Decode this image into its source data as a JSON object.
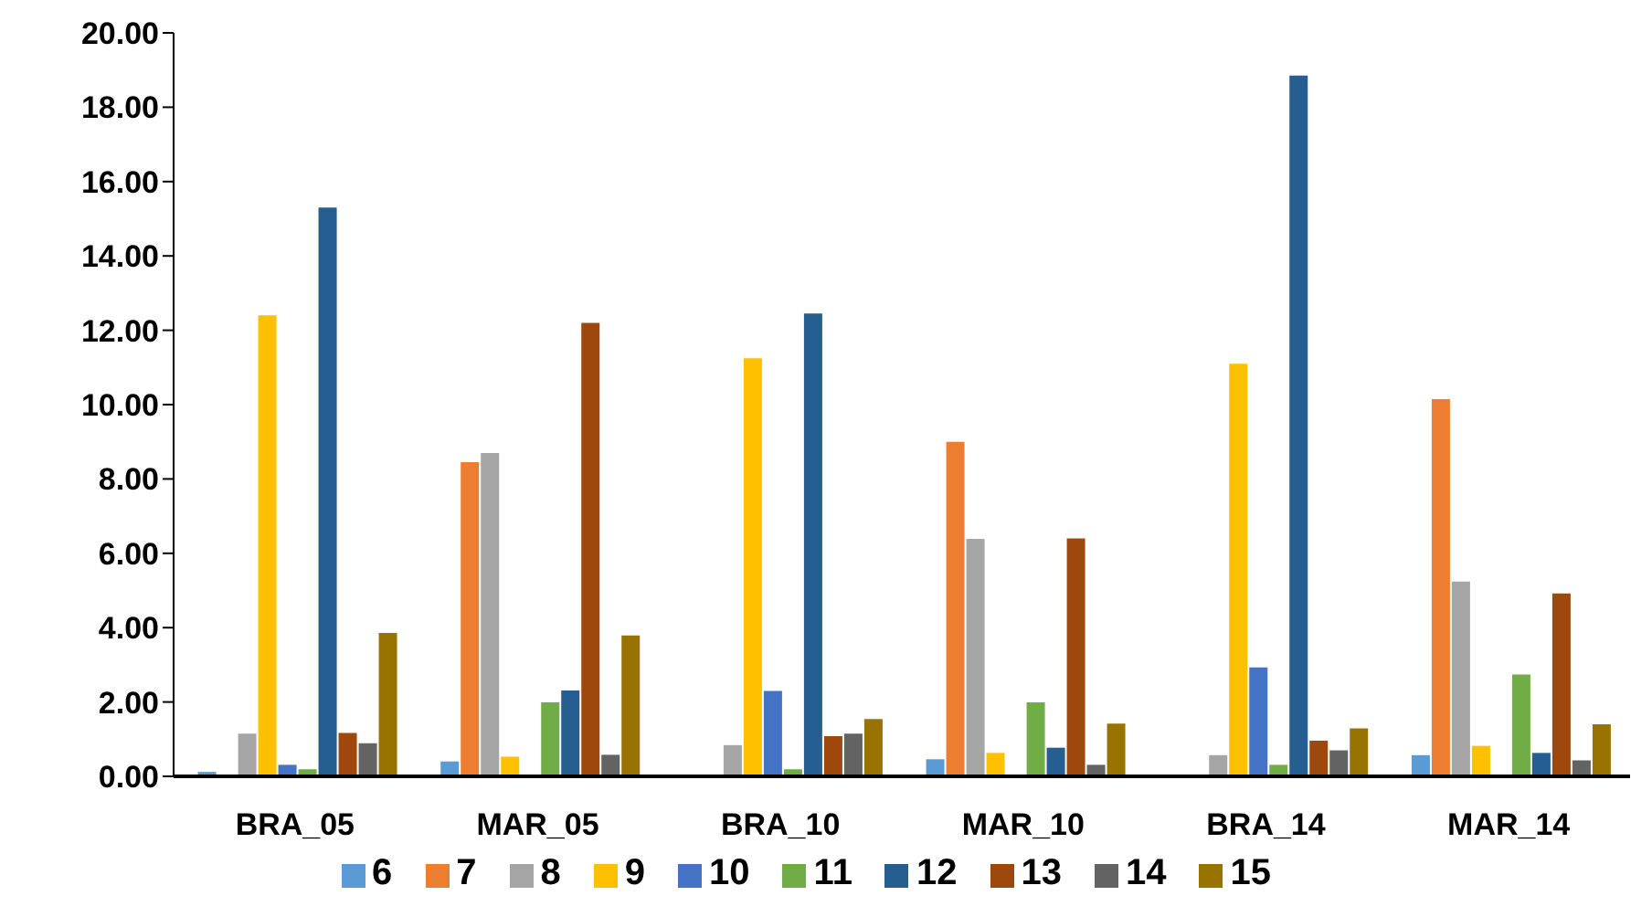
{
  "chart_data": {
    "type": "bar",
    "categories": [
      "BRA_05",
      "MAR_05",
      "BRA_10",
      "MAR_10",
      "BRA_14",
      "MAR_14"
    ],
    "series": [
      {
        "name": "6",
        "color": "#5b9bd5",
        "values": [
          0.12,
          0.4,
          null,
          0.46,
          null,
          0.57
        ]
      },
      {
        "name": "7",
        "color": "#ed7d31",
        "values": [
          null,
          8.45,
          null,
          9.0,
          null,
          10.15
        ]
      },
      {
        "name": "8",
        "color": "#a5a5a5",
        "values": [
          1.15,
          8.7,
          0.84,
          6.39,
          0.57,
          5.24
        ]
      },
      {
        "name": "9",
        "color": "#ffc000",
        "values": [
          12.4,
          0.53,
          11.25,
          0.63,
          11.1,
          0.82
        ]
      },
      {
        "name": "10",
        "color": "#4472c4",
        "values": [
          0.31,
          0,
          2.3,
          0,
          2.93,
          0
        ]
      },
      {
        "name": "11",
        "color": "#70ad47",
        "values": [
          0.19,
          1.99,
          0.19,
          1.99,
          0.31,
          2.74
        ]
      },
      {
        "name": "12",
        "color": "#255e91",
        "values": [
          15.3,
          2.31,
          12.45,
          0.77,
          18.85,
          0.63
        ]
      },
      {
        "name": "13",
        "color": "#9e480e",
        "values": [
          1.17,
          12.2,
          1.08,
          6.4,
          0.96,
          4.92
        ]
      },
      {
        "name": "14",
        "color": "#636363",
        "values": [
          0.89,
          0.58,
          1.15,
          0.31,
          0.7,
          0.43
        ]
      },
      {
        "name": "15",
        "color": "#997300",
        "values": [
          3.86,
          3.79,
          1.54,
          1.42,
          1.29,
          1.4
        ]
      }
    ],
    "ylim": [
      0,
      20
    ],
    "yticks": [
      {
        "value": 0,
        "label": "0.00"
      },
      {
        "value": 2,
        "label": "2.00"
      },
      {
        "value": 4,
        "label": "4.00"
      },
      {
        "value": 6,
        "label": "6.00"
      },
      {
        "value": 8,
        "label": "8.00"
      },
      {
        "value": 10,
        "label": "10.00"
      },
      {
        "value": 12,
        "label": "12.00"
      },
      {
        "value": 14,
        "label": "14.00"
      },
      {
        "value": 16,
        "label": "16.00"
      },
      {
        "value": 18,
        "label": "18.00"
      },
      {
        "value": 20,
        "label": "20.00"
      }
    ],
    "grid": false,
    "legend": "bottom"
  }
}
